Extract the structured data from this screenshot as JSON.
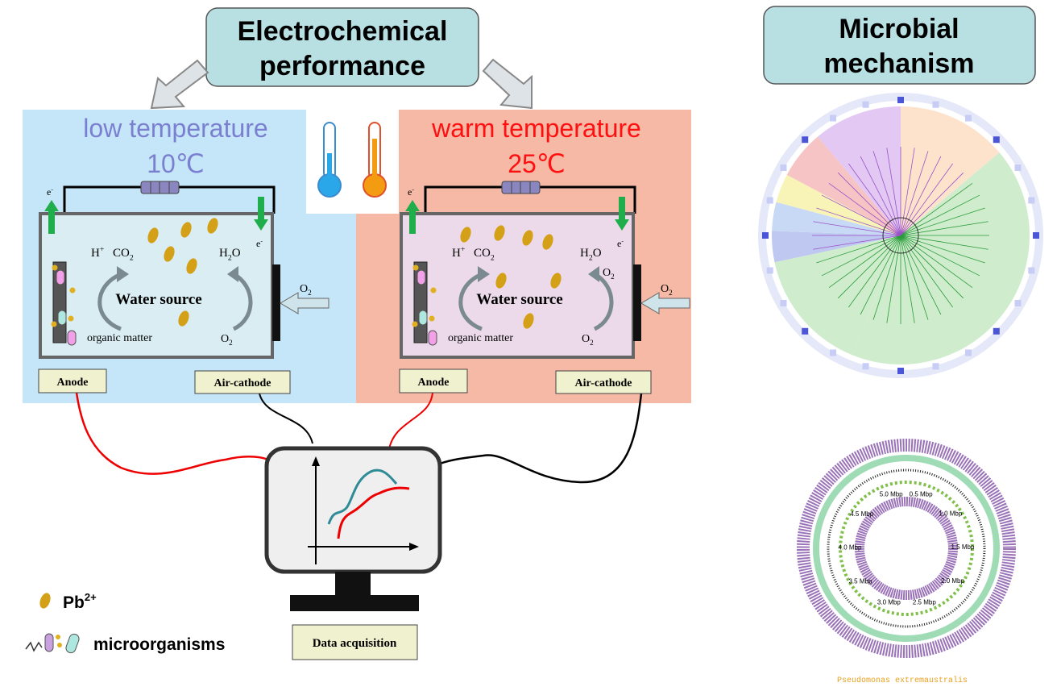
{
  "titles": {
    "electrochemical": [
      "Electrochemical",
      "performance"
    ],
    "microbial": [
      "Microbial",
      "mechanism"
    ]
  },
  "panels": [
    {
      "condition": "low temperature",
      "temperature": "10℃",
      "anode": "Anode",
      "cathode": "Air-cathode"
    },
    {
      "condition": "warm temperature",
      "temperature": "25℃",
      "anode": "Anode",
      "cathode": "Air-cathode"
    }
  ],
  "cell_labels": {
    "electron": {
      "base": "e",
      "sup": "-"
    },
    "proton": {
      "base": "H",
      "sup": "+"
    },
    "co2": {
      "base": "CO",
      "sub": "2"
    },
    "water": {
      "base": "H",
      "sub": "2",
      "end": "O"
    },
    "oxygen": {
      "base": "O",
      "sub": "2"
    },
    "water_source": "Water source",
    "organic": "organic matter"
  },
  "data_acquisition": "Data acquisition",
  "legend": {
    "lead": {
      "base": "Pb",
      "sup": "2+"
    },
    "microorganisms": "microorganisms"
  },
  "genome": {
    "ticks": [
      "0.5 Mbp",
      "1.0 Mbp",
      "1.5 Mbp",
      "2.0 Mbp",
      "2.5 Mbp",
      "3.0 Mbp",
      "3.5 Mbp",
      "4.0 Mbp",
      "4.5 Mbp",
      "5.0 Mbp"
    ],
    "organism": "Pseudomonas extremaustralis"
  }
}
